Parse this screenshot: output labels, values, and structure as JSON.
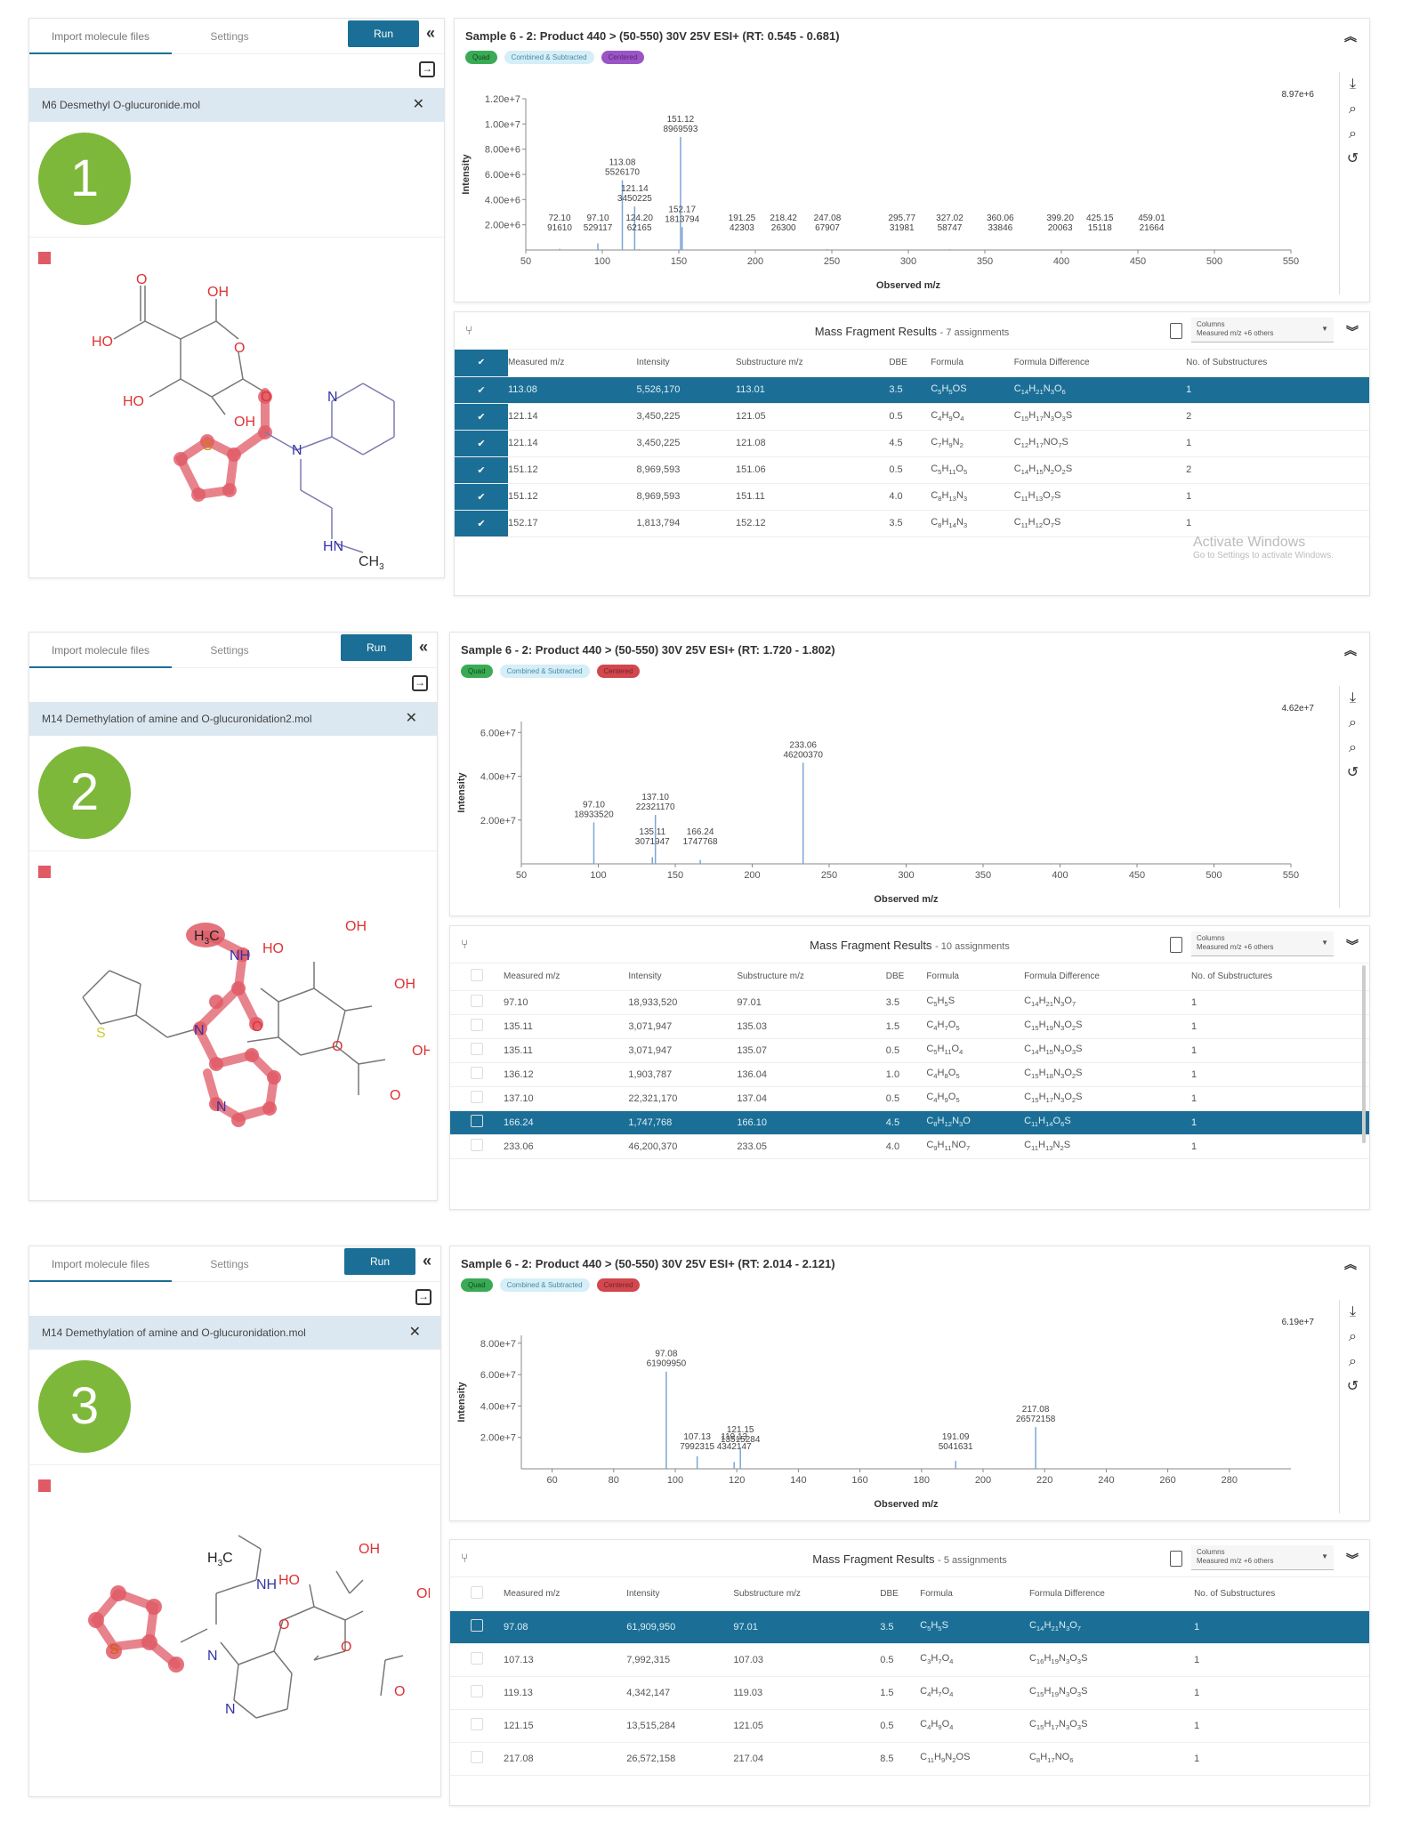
{
  "common": {
    "tab_import": "Import molecule files",
    "tab_settings": "Settings",
    "run_label": "Run",
    "collapse_glyph": "«",
    "import_glyph": "→",
    "close_glyph": "✕",
    "expand_up_glyph": "⌃",
    "expand_down_glyph": "⌄",
    "tags": [
      "Quad",
      "Combined & Subtracted",
      "Centered"
    ],
    "tools": [
      "download-icon",
      "zoom-in-icon",
      "zoom-out-icon",
      "reset-icon"
    ],
    "table_title": "Mass Fragment Results",
    "columns_label": "Columns",
    "columns_value": "Measured m/z +6 others",
    "headers": [
      "Measured m/z",
      "Intensity",
      "Substructure m/z",
      "DBE",
      "Formula",
      "Formula Difference",
      "No. of Substructures"
    ],
    "x_axis_label": "Observed m/z",
    "y_axis_label": "Intensity",
    "accent": "#1b6f96",
    "badge_color": "#7db83a",
    "highlight_color": "#e05a66"
  },
  "panels": [
    {
      "number": "1",
      "file": "M6 Desmethyl O-glucuronide.mol",
      "title": "Sample 6 - 2: Product 440 > (50-550) 30V 25V ESI+ (RT: 0.545 - 0.681)",
      "third_tag_color": "purple",
      "max_label": "8.97e+6",
      "assignments": "- 7 assignments",
      "y_ticks": [
        "1.20e+7",
        "1.00e+7",
        "8.00e+6",
        "6.00e+6",
        "4.00e+6",
        "2.00e+6"
      ],
      "x_ticks": [
        "50",
        "100",
        "150",
        "200",
        "250",
        "300",
        "350",
        "400",
        "450",
        "500",
        "550"
      ],
      "rows": [
        {
          "mz": "113.08",
          "intensity": "5,526,170",
          "sub": "113.01",
          "dbe": "3.5",
          "formula": "C5H5OS",
          "diff": "C14H21N3O6",
          "n": "1",
          "selected": true
        },
        {
          "mz": "121.14",
          "intensity": "3,450,225",
          "sub": "121.05",
          "dbe": "0.5",
          "formula": "C4H9O4",
          "diff": "C15H17N3O3S",
          "n": "2"
        },
        {
          "mz": "121.14",
          "intensity": "3,450,225",
          "sub": "121.08",
          "dbe": "4.5",
          "formula": "C7H9N2",
          "diff": "C12H17NO7S",
          "n": "1"
        },
        {
          "mz": "151.12",
          "intensity": "8,969,593",
          "sub": "151.06",
          "dbe": "0.5",
          "formula": "C5H11O5",
          "diff": "C14H15N2O2S",
          "n": "2"
        },
        {
          "mz": "151.12",
          "intensity": "8,969,593",
          "sub": "151.11",
          "dbe": "4.0",
          "formula": "C8H13N3",
          "diff": "C11H13O7S",
          "n": "1"
        },
        {
          "mz": "152.17",
          "intensity": "1,813,794",
          "sub": "152.12",
          "dbe": "3.5",
          "formula": "C8H14N3",
          "diff": "C11H12O7S",
          "n": "1"
        }
      ]
    },
    {
      "number": "2",
      "file": "M14 Demethylation of amine and O-glucuronidation2.mol",
      "title": "Sample 6 - 2: Product 440 > (50-550) 30V 25V ESI+ (RT: 1.720 - 1.802)",
      "third_tag_color": "red",
      "max_label": "4.62e+7",
      "assignments": "- 10 assignments",
      "y_ticks": [
        "6.00e+7",
        "4.00e+7",
        "2.00e+7"
      ],
      "x_ticks": [
        "50",
        "100",
        "150",
        "200",
        "250",
        "300",
        "350",
        "400",
        "450",
        "500",
        "550"
      ],
      "rows": [
        {
          "mz": "97.10",
          "intensity": "18,933,520",
          "sub": "97.01",
          "dbe": "3.5",
          "formula": "C5H5S",
          "diff": "C14H21N3O7",
          "n": "1"
        },
        {
          "mz": "135.11",
          "intensity": "3,071,947",
          "sub": "135.03",
          "dbe": "1.5",
          "formula": "C4H7O5",
          "diff": "C15H19N3O2S",
          "n": "1"
        },
        {
          "mz": "135.11",
          "intensity": "3,071,947",
          "sub": "135.07",
          "dbe": "0.5",
          "formula": "C5H11O4",
          "diff": "C14H15N3O3S",
          "n": "1"
        },
        {
          "mz": "136.12",
          "intensity": "1,903,787",
          "sub": "136.04",
          "dbe": "1.0",
          "formula": "C4H8O5",
          "diff": "C15H18N3O2S",
          "n": "1"
        },
        {
          "mz": "137.10",
          "intensity": "22,321,170",
          "sub": "137.04",
          "dbe": "0.5",
          "formula": "C4H9O5",
          "diff": "C15H17N3O2S",
          "n": "1"
        },
        {
          "mz": "166.24",
          "intensity": "1,747,768",
          "sub": "166.10",
          "dbe": "4.5",
          "formula": "C8H12N3O",
          "diff": "C11H14O6S",
          "n": "1",
          "selected": true
        },
        {
          "mz": "233.06",
          "intensity": "46,200,370",
          "sub": "233.05",
          "dbe": "4.0",
          "formula": "C9H11NO7",
          "diff": "C11H13N2S",
          "n": "1"
        }
      ]
    },
    {
      "number": "3",
      "file": "M14 Demethylation of amine and O-glucuronidation.mol",
      "title": "Sample 6 - 2: Product 440 > (50-550) 30V 25V ESI+ (RT: 2.014 - 2.121)",
      "third_tag_color": "red",
      "max_label": "6.19e+7",
      "assignments": "- 5 assignments",
      "y_ticks": [
        "8.00e+7",
        "6.00e+7",
        "4.00e+7",
        "2.00e+7"
      ],
      "x_ticks": [
        "60",
        "80",
        "100",
        "120",
        "140",
        "160",
        "180",
        "200",
        "220",
        "240",
        "260",
        "280"
      ],
      "rows": [
        {
          "mz": "97.08",
          "intensity": "61,909,950",
          "sub": "97.01",
          "dbe": "3.5",
          "formula": "C5H5S",
          "diff": "C14H21N3O7",
          "n": "1",
          "selected": true
        },
        {
          "mz": "107.13",
          "intensity": "7,992,315",
          "sub": "107.03",
          "dbe": "0.5",
          "formula": "C3H7O4",
          "diff": "C16H19N3O3S",
          "n": "1"
        },
        {
          "mz": "119.13",
          "intensity": "4,342,147",
          "sub": "119.03",
          "dbe": "1.5",
          "formula": "C4H7O4",
          "diff": "C15H19N3O3S",
          "n": "1"
        },
        {
          "mz": "121.15",
          "intensity": "13,515,284",
          "sub": "121.05",
          "dbe": "0.5",
          "formula": "C4H9O4",
          "diff": "C15H17N3O3S",
          "n": "1"
        },
        {
          "mz": "217.08",
          "intensity": "26,572,158",
          "sub": "217.04",
          "dbe": "8.5",
          "formula": "C11H9N2OS",
          "diff": "C8H17NO6",
          "n": "1"
        }
      ]
    }
  ],
  "watermark": {
    "title": "Activate Windows",
    "subtitle": "Go to Settings to activate Windows."
  },
  "chart_data": [
    {
      "type": "bar",
      "title": "Sample 6 - 2: Product 440 > (50-550) 30V 25V ESI+ (RT: 0.545 - 0.681)",
      "xlabel": "Observed m/z",
      "ylabel": "Intensity",
      "xlim": [
        50,
        550
      ],
      "ylim": [
        0,
        12000000
      ],
      "x": [
        72.1,
        97.1,
        113.08,
        121.14,
        124.2,
        151.12,
        152.17,
        191.25,
        218.42,
        247.08,
        295.77,
        327.02,
        360.06,
        399.2,
        425.15,
        459.01
      ],
      "values": [
        91610,
        529117,
        5526170,
        3450225,
        62165,
        8969593,
        1813794,
        42303,
        26300,
        67907,
        31981,
        58747,
        33846,
        20063,
        15118,
        21664
      ],
      "annotations": [
        "8.97e+6"
      ]
    },
    {
      "type": "bar",
      "title": "Sample 6 - 2: Product 440 > (50-550) 30V 25V ESI+ (RT: 1.720 - 1.802)",
      "xlabel": "Observed m/z",
      "ylabel": "Intensity",
      "xlim": [
        50,
        550
      ],
      "ylim": [
        0,
        65000000
      ],
      "x": [
        97.1,
        135.11,
        137.1,
        166.24,
        233.06
      ],
      "values": [
        18933520,
        3071947,
        22321170,
        1747768,
        46200370
      ],
      "annotations": [
        "4.62e+7"
      ]
    },
    {
      "type": "bar",
      "title": "Sample 6 - 2: Product 440 > (50-550) 30V 25V ESI+ (RT: 2.014 - 2.121)",
      "xlabel": "Observed m/z",
      "ylabel": "Intensity",
      "xlim": [
        50,
        300
      ],
      "ylim": [
        0,
        85000000
      ],
      "x": [
        97.08,
        107.13,
        119.13,
        121.15,
        191.09,
        217.08
      ],
      "values": [
        61909950,
        7992315,
        4342147,
        13515284,
        5041631,
        26572158
      ],
      "annotations": [
        "6.19e+7"
      ]
    }
  ]
}
